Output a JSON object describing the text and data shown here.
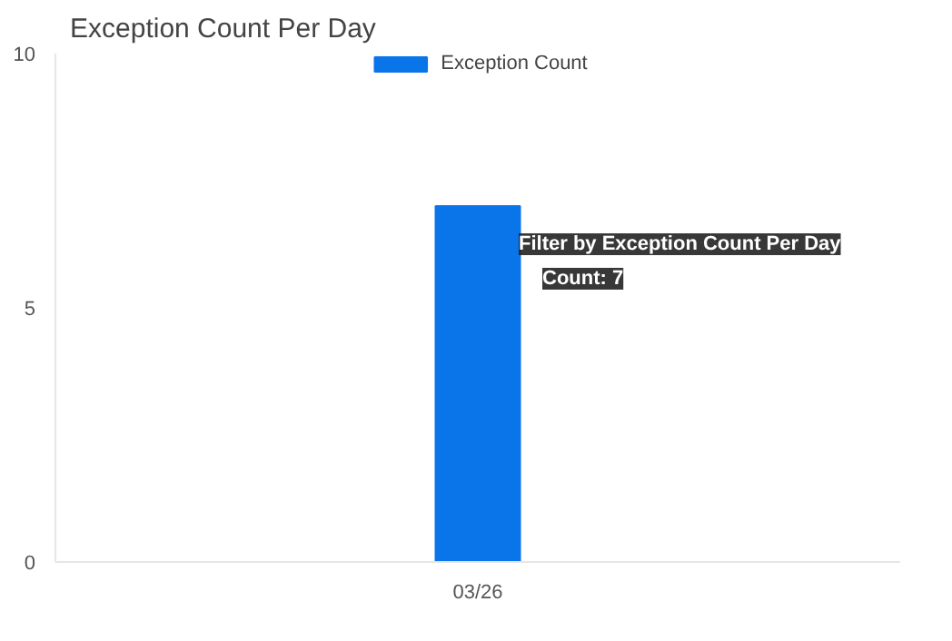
{
  "chart_data": {
    "type": "bar",
    "title": "Exception Count Per Day",
    "categories": [
      "03/26"
    ],
    "series": [
      {
        "name": "Exception Count",
        "color": "#0a74e9",
        "values": [
          7
        ]
      }
    ],
    "ylim": [
      0,
      10
    ],
    "yticks": [
      0,
      5,
      10
    ],
    "grid": false,
    "legend": "top",
    "annotations": [
      "Filter by Exception Count Per Day",
      "Count: 7"
    ]
  }
}
